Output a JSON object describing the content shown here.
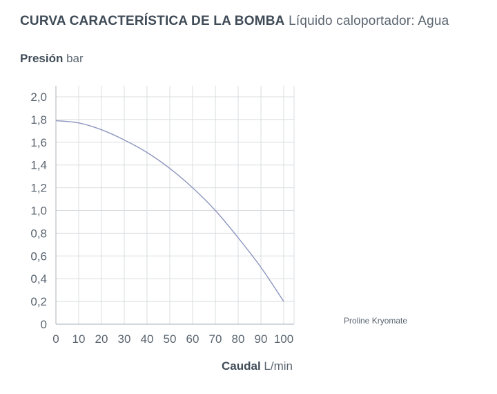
{
  "chart_data": {
    "type": "line",
    "title": "CURVA CARACTERÍSTICA DE LA BOMBA",
    "subtitle": "Líquido caloportador: Agua",
    "ylabel": "Presión",
    "yunit": "bar",
    "xlabel": "Caudal",
    "xunit": "L/min",
    "xlim": [
      0,
      100
    ],
    "ylim": [
      0,
      2.0
    ],
    "xticks": [
      "0",
      "10",
      "20",
      "30",
      "40",
      "50",
      "60",
      "70",
      "80",
      "90",
      "100"
    ],
    "yticks": [
      "0",
      "0,2",
      "0,4",
      "0,6",
      "0,8",
      "1,0",
      "1,2",
      "1,4",
      "1,6",
      "1,8",
      "2,0"
    ],
    "grid": true,
    "series": [
      {
        "name": "Proline Kryomate",
        "color": "#8e96bf",
        "x": [
          0,
          10,
          20,
          30,
          40,
          50,
          60,
          70,
          80,
          90,
          100
        ],
        "y": [
          1.79,
          1.77,
          1.71,
          1.62,
          1.51,
          1.37,
          1.2,
          1.0,
          0.76,
          0.5,
          0.2
        ]
      }
    ]
  }
}
